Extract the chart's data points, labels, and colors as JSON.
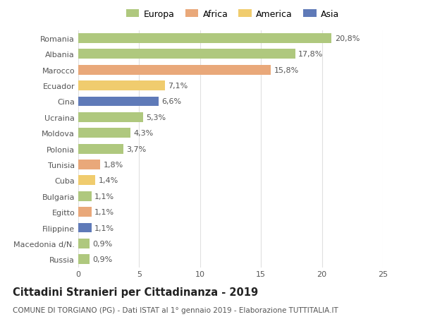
{
  "countries": [
    "Russia",
    "Macedonia d/N.",
    "Filippine",
    "Egitto",
    "Bulgaria",
    "Cuba",
    "Tunisia",
    "Polonia",
    "Moldova",
    "Ucraina",
    "Cina",
    "Ecuador",
    "Marocco",
    "Albania",
    "Romania"
  ],
  "values": [
    0.9,
    0.9,
    1.1,
    1.1,
    1.1,
    1.4,
    1.8,
    3.7,
    4.3,
    5.3,
    6.6,
    7.1,
    15.8,
    17.8,
    20.8
  ],
  "labels": [
    "0,9%",
    "0,9%",
    "1,1%",
    "1,1%",
    "1,1%",
    "1,4%",
    "1,8%",
    "3,7%",
    "4,3%",
    "5,3%",
    "6,6%",
    "7,1%",
    "15,8%",
    "17,8%",
    "20,8%"
  ],
  "colors": [
    "#afc87e",
    "#afc87e",
    "#5f7ab8",
    "#e9a87a",
    "#afc87e",
    "#f0cc6e",
    "#e9a87a",
    "#afc87e",
    "#afc87e",
    "#afc87e",
    "#5f7ab8",
    "#f0cc6e",
    "#e9a87a",
    "#afc87e",
    "#afc87e"
  ],
  "legend_labels": [
    "Europa",
    "Africa",
    "America",
    "Asia"
  ],
  "legend_colors": [
    "#afc87e",
    "#e9a87a",
    "#f0cc6e",
    "#5f7ab8"
  ],
  "title": "Cittadini Stranieri per Cittadinanza - 2019",
  "subtitle": "COMUNE DI TORGIANO (PG) - Dati ISTAT al 1° gennaio 2019 - Elaborazione TUTTITALIA.IT",
  "xlim": [
    0,
    25
  ],
  "xticks": [
    0,
    5,
    10,
    15,
    20,
    25
  ],
  "bg_color": "#ffffff",
  "grid_color": "#e0e0e0",
  "bar_height": 0.62,
  "label_fontsize": 8,
  "tick_fontsize": 8,
  "title_fontsize": 10.5,
  "subtitle_fontsize": 7.5
}
